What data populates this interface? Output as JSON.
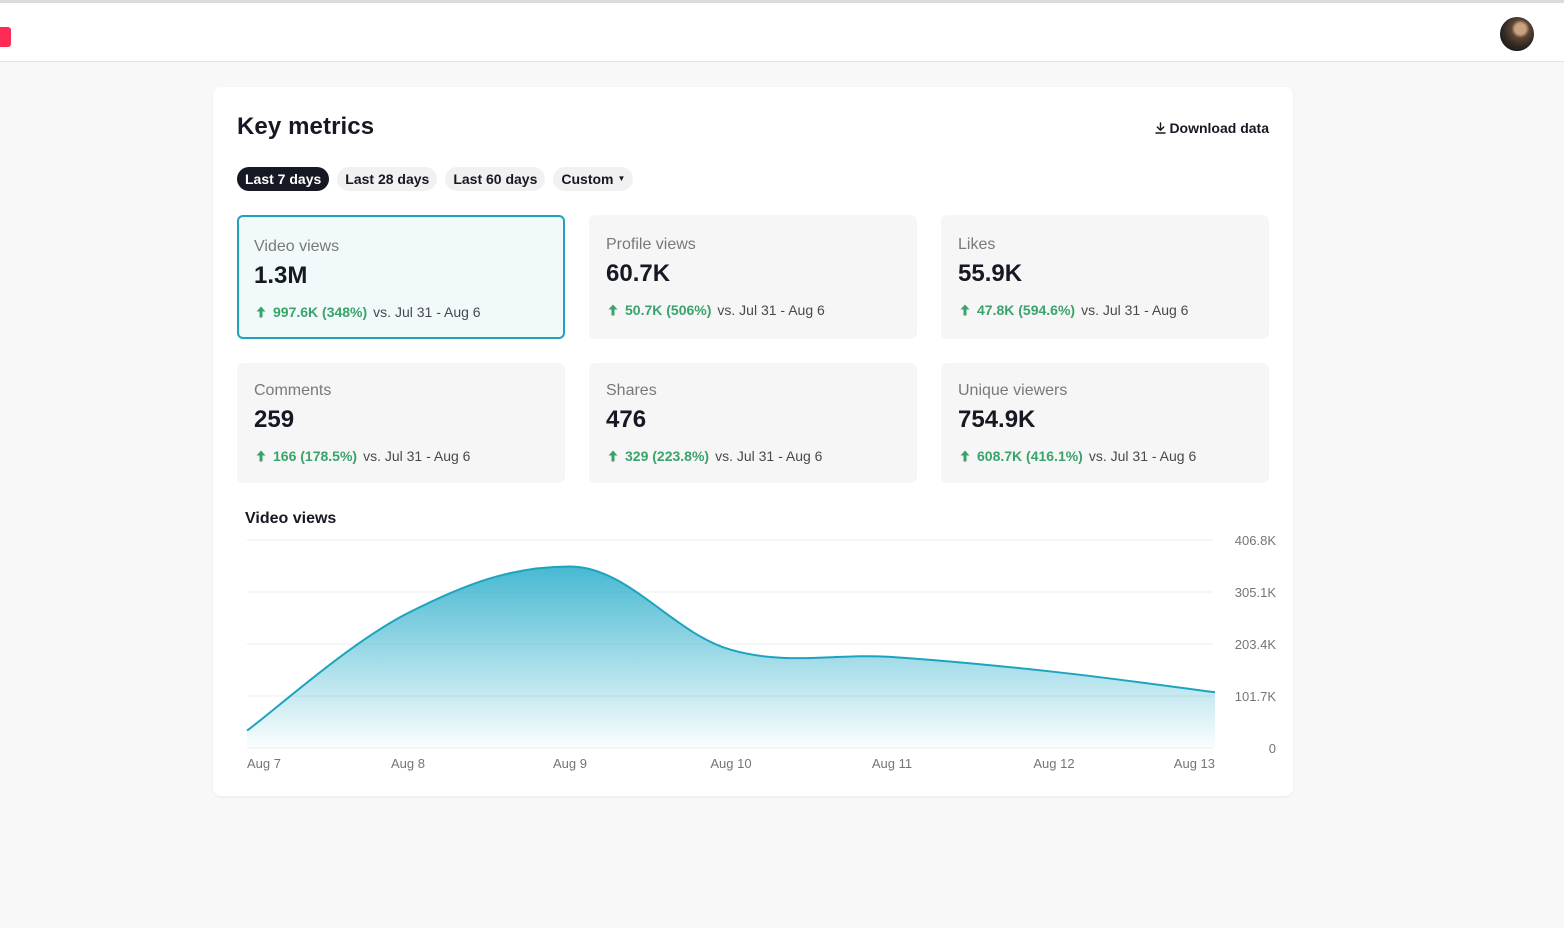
{
  "header": {
    "profile_avatar": "user-avatar"
  },
  "page": {
    "title": "Key metrics",
    "download_label": "Download data",
    "ranges": [
      {
        "label": "Last 7 days",
        "active": true
      },
      {
        "label": "Last 28 days",
        "active": false
      },
      {
        "label": "Last 60 days",
        "active": false
      },
      {
        "label": "Custom",
        "active": false
      }
    ]
  },
  "metrics": [
    {
      "label": "Video views",
      "value": "1.3M",
      "change": "997.6K (348%)",
      "comparison": "vs.  Jul 31 - Aug 6",
      "selected": true
    },
    {
      "label": "Profile views",
      "value": "60.7K",
      "change": "50.7K (506%)",
      "comparison": "vs.  Jul 31 - Aug 6",
      "selected": false
    },
    {
      "label": "Likes",
      "value": "55.9K",
      "change": "47.8K (594.6%)",
      "comparison": "vs.  Jul 31 - Aug 6",
      "selected": false
    },
    {
      "label": "Comments",
      "value": "259",
      "change": "166 (178.5%)",
      "comparison": "vs.  Jul 31 - Aug 6",
      "selected": false
    },
    {
      "label": "Shares",
      "value": "476",
      "change": "329 (223.8%)",
      "comparison": "vs.  Jul 31 - Aug 6",
      "selected": false
    },
    {
      "label": "Unique viewers",
      "value": "754.9K",
      "change": "608.7K (416.1%)",
      "comparison": "vs.  Jul 31 - Aug 6",
      "selected": false
    }
  ],
  "colors": {
    "accent": "#1ca4be",
    "positive": "#3aa36b",
    "brand": "#fe2c55",
    "active_pill": "#161823"
  },
  "chart_data": {
    "type": "area",
    "title": "Video views",
    "x": [
      "Aug 7",
      "Aug 8",
      "Aug 9",
      "Aug 10",
      "Aug 11",
      "Aug 12",
      "Aug 13"
    ],
    "series": [
      {
        "values": [
          34000,
          264000,
          355000,
          192000,
          178000,
          149000,
          109000
        ]
      }
    ],
    "ylim": [
      0,
      406800
    ],
    "ytick_labels": [
      "406.8K",
      "305.1K",
      "203.4K",
      "101.7K",
      "0"
    ],
    "ytick_values": [
      406800,
      305100,
      203400,
      101700,
      0
    ],
    "grid": true,
    "y_axis_side": "right"
  }
}
